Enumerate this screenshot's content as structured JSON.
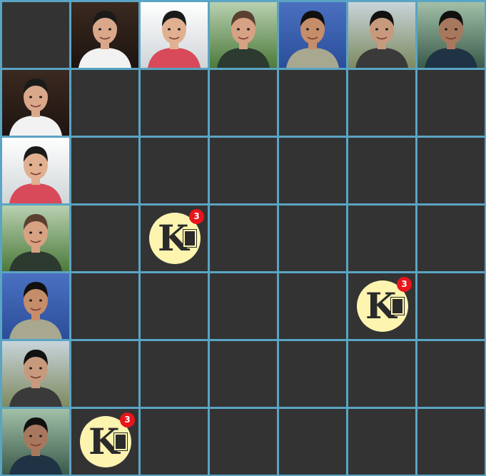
{
  "board": {
    "rows": 7,
    "cols": 7,
    "colors": {
      "grid_line": "#5aa4c4",
      "empty_cell": "#333333",
      "token_fill": "#fdf4b0",
      "badge": "#e8151b"
    }
  },
  "players": [
    {
      "id": "p1",
      "photo_bg": [
        "#3a2a20",
        "#1e1410"
      ],
      "shirt": "#f2f2f2",
      "skin": "#d9a88a",
      "hair": "#1a1a1a"
    },
    {
      "id": "p2",
      "photo_bg": [
        "#ffffff",
        "#cfd5d8"
      ],
      "shirt": "#d84a5a",
      "skin": "#e0b090",
      "hair": "#1a1a1a"
    },
    {
      "id": "p3",
      "photo_bg": [
        "#b8d0b0",
        "#4d7a3c"
      ],
      "shirt": "#2c3a30",
      "skin": "#d6a283",
      "hair": "#5a4030"
    },
    {
      "id": "p4",
      "photo_bg": [
        "#4a70c0",
        "#2b4e9a"
      ],
      "shirt": "#a8a890",
      "skin": "#c68d6b",
      "hair": "#101010"
    },
    {
      "id": "p5",
      "photo_bg": [
        "#c8d4da",
        "#7d8a60"
      ],
      "shirt": "#3a3a3a",
      "skin": "#c79a7d",
      "hair": "#111111"
    },
    {
      "id": "p6",
      "photo_bg": [
        "#a2c0a8",
        "#3a5a4a"
      ],
      "shirt": "#1f3344",
      "skin": "#a8785e",
      "hair": "#111111"
    }
  ],
  "tokens": [
    {
      "row": 3,
      "col": 2,
      "letter": "K",
      "count": "3"
    },
    {
      "row": 4,
      "col": 5,
      "letter": "K",
      "count": "3"
    },
    {
      "row": 6,
      "col": 1,
      "letter": "K",
      "count": "3"
    }
  ]
}
